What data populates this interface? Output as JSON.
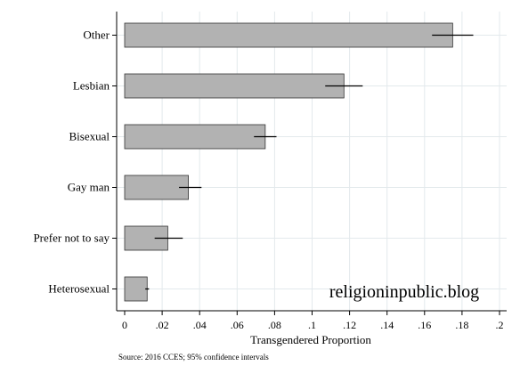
{
  "chart_data": {
    "type": "bar",
    "orientation": "horizontal",
    "categories": [
      "Other",
      "Lesbian",
      "Bisexual",
      "Gay man",
      "Prefer not to say",
      "Heterosexual"
    ],
    "values": [
      0.175,
      0.117,
      0.075,
      0.034,
      0.023,
      0.012
    ],
    "ci_low": [
      0.164,
      0.107,
      0.069,
      0.029,
      0.016,
      0.011
    ],
    "ci_high": [
      0.186,
      0.127,
      0.081,
      0.041,
      0.031,
      0.013
    ],
    "title": "",
    "xlabel": "Transgendered Proportion",
    "ylabel": "",
    "xlim": [
      0,
      0.2
    ],
    "xticks": [
      0,
      0.02,
      0.04,
      0.06,
      0.08,
      0.1,
      0.12,
      0.14,
      0.16,
      0.18,
      0.2
    ],
    "xtick_labels": [
      "0",
      ".02",
      ".04",
      ".06",
      ".08",
      ".1",
      ".12",
      ".14",
      ".16",
      ".18",
      ".2"
    ],
    "grid": true,
    "note": "Source: 2016 CCES; 95% confidence intervals",
    "watermark": "religioninpublic.blog",
    "colors": {
      "bar_fill": "#b2b2b2",
      "bar_stroke": "#333333",
      "grid": "#e3e9ec",
      "error_bar": "#000000"
    }
  }
}
